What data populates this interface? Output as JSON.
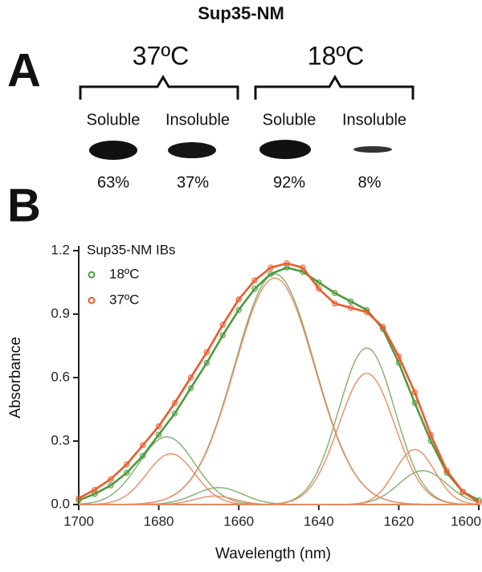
{
  "panel_a": {
    "label": "A",
    "title": "Sup35-NM",
    "groups": [
      {
        "temperature": "37ºC",
        "lanes": [
          {
            "label": "Soluble",
            "value": "63%"
          },
          {
            "label": "Insoluble",
            "value": "37%"
          }
        ]
      },
      {
        "temperature": "18ºC",
        "lanes": [
          {
            "label": "Soluble",
            "value": "92%"
          },
          {
            "label": "Insoluble",
            "value": "8%"
          }
        ]
      }
    ]
  },
  "panel_b": {
    "label": "B"
  },
  "chart_data": {
    "type": "scatter",
    "xlabel": "Wavelength (nm)",
    "ylabel": "Absorbance",
    "legend_title": "Sup35-NM IBs",
    "legend": "upper left",
    "xlim": [
      1700,
      1600
    ],
    "xticks": [
      1700,
      1680,
      1660,
      1640,
      1620,
      1600
    ],
    "ylim": [
      0,
      1.2
    ],
    "yticks": [
      {
        "value": 0,
        "label": "0.0"
      },
      0.3,
      0.6,
      0.9,
      1.2
    ],
    "x": [
      1700,
      1696,
      1692,
      1688,
      1684,
      1680,
      1676,
      1672,
      1668,
      1664,
      1660,
      1656,
      1652,
      1648,
      1644,
      1640,
      1636,
      1632,
      1628,
      1624,
      1620,
      1616,
      1612,
      1608,
      1604,
      1600
    ],
    "series": [
      {
        "name": "18ºC",
        "color": "#4f9a3f",
        "component_color": "#7fb06f",
        "values": [
          0.02,
          0.05,
          0.09,
          0.15,
          0.23,
          0.33,
          0.43,
          0.55,
          0.67,
          0.8,
          0.92,
          1.02,
          1.09,
          1.12,
          1.1,
          1.05,
          1.0,
          0.96,
          0.92,
          0.83,
          0.67,
          0.48,
          0.3,
          0.15,
          0.06,
          0.02
        ],
        "components": [
          {
            "center": 1678,
            "height": 0.32,
            "width": 7
          },
          {
            "center": 1665,
            "height": 0.08,
            "width": 6
          },
          {
            "center": 1651,
            "height": 1.09,
            "width": 10
          },
          {
            "center": 1628,
            "height": 0.74,
            "width": 7
          },
          {
            "center": 1614,
            "height": 0.16,
            "width": 6
          }
        ]
      },
      {
        "name": "37ºC",
        "color": "#ee5a2a",
        "component_color": "#f08a64",
        "values": [
          0.03,
          0.07,
          0.12,
          0.19,
          0.28,
          0.37,
          0.48,
          0.6,
          0.72,
          0.85,
          0.97,
          1.06,
          1.12,
          1.14,
          1.12,
          1.02,
          0.95,
          0.93,
          0.91,
          0.84,
          0.7,
          0.53,
          0.33,
          0.16,
          0.06,
          0.01
        ],
        "components": [
          {
            "center": 1677,
            "height": 0.24,
            "width": 6
          },
          {
            "center": 1666,
            "height": 0.04,
            "width": 5
          },
          {
            "center": 1651,
            "height": 1.07,
            "width": 10
          },
          {
            "center": 1628,
            "height": 0.62,
            "width": 7
          },
          {
            "center": 1616,
            "height": 0.26,
            "width": 5
          }
        ]
      }
    ]
  }
}
